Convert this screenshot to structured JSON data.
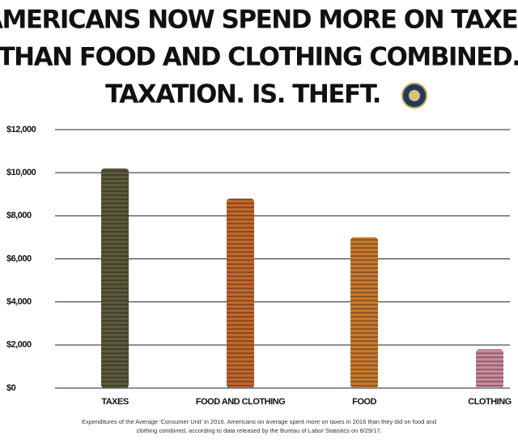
{
  "chart_data": {
    "type": "bar",
    "title": [
      "AMERICANS NOW SPEND MORE ON TAXES",
      "THAN FOOD AND CLOTHING COMBINED.",
      "TAXATION. IS. THEFT."
    ],
    "categories": [
      "TAXES",
      "FOOD AND CLOTHING",
      "FOOD",
      "CLOTHING"
    ],
    "values": [
      10200,
      8800,
      7000,
      1800
    ],
    "colors": [
      "#5b5a3c",
      "#c0682e",
      "#c87a30",
      "#c98a9a"
    ],
    "ylim": [
      0,
      12000
    ],
    "yticks": [
      {
        "value": 0,
        "label": "$0"
      },
      {
        "value": 2000,
        "label": "$2,000"
      },
      {
        "value": 4000,
        "label": "$4,000"
      },
      {
        "value": 6000,
        "label": "$6,000"
      },
      {
        "value": 8000,
        "label": "$8,000"
      },
      {
        "value": 10000,
        "label": "$10,000"
      },
      {
        "value": 12000,
        "label": "$12,000"
      }
    ],
    "grid": true,
    "caption": [
      "Expenditures of the Average 'Consumer Unit' in 2016. Americans on average spent more on taxes in 2016 than they did on food and",
      "clothing combined, according to data released by the Bureau of Labor Statistics on 8/29/17."
    ]
  }
}
